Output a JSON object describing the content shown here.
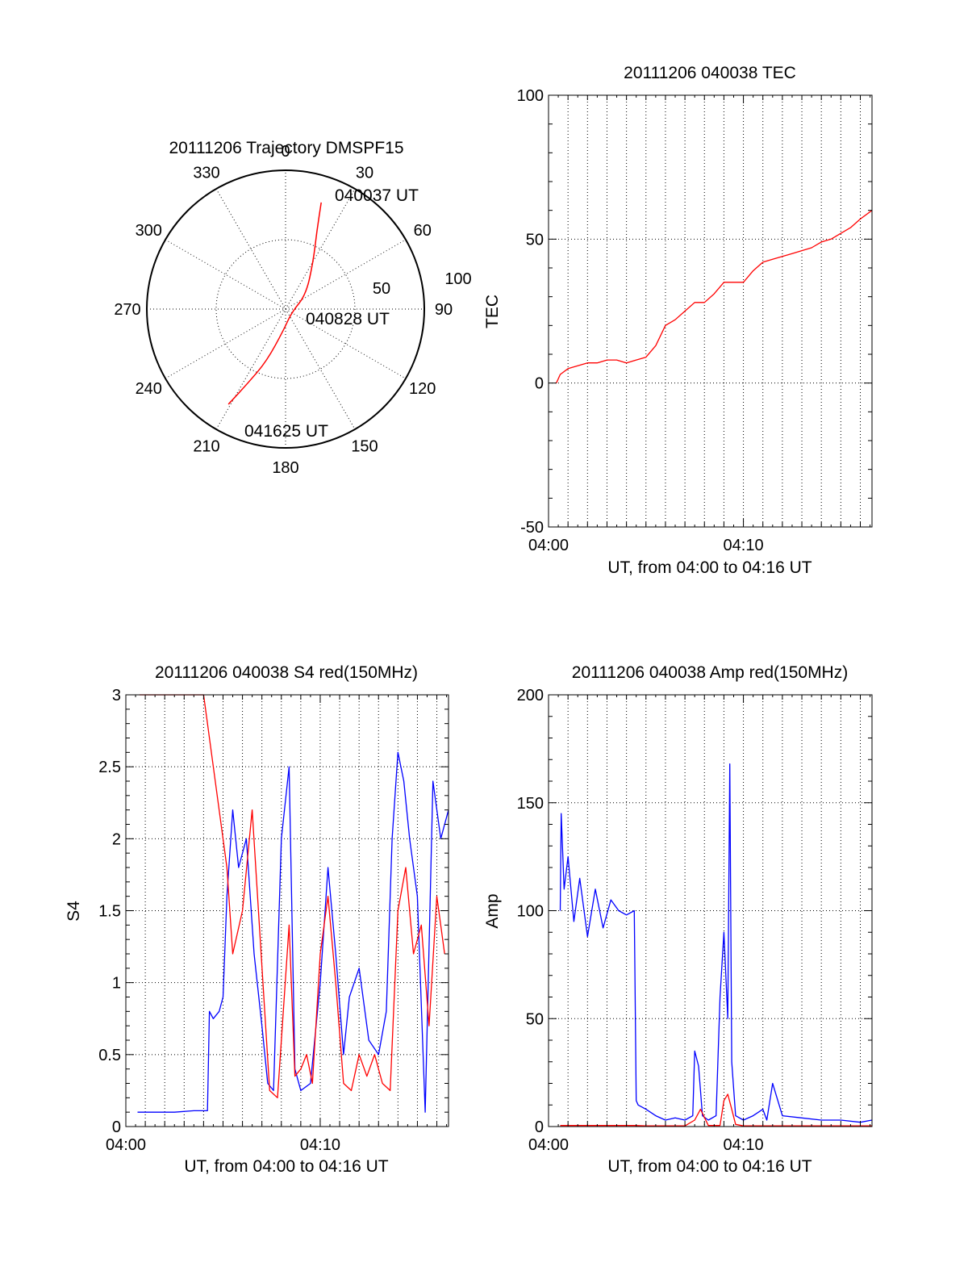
{
  "colors": {
    "red": "#ff0000",
    "blue": "#0000ff",
    "black": "#000000",
    "grid": "#000000"
  },
  "chart_data": [
    {
      "id": "trajectory",
      "type": "polar",
      "title": "20111206 Trajectory DMSPF15",
      "r_max": 100,
      "r_ring": 50,
      "ring_labels": [
        "50",
        "100"
      ],
      "angle_labels": [
        {
          "angle": 0,
          "text": "0"
        },
        {
          "angle": 30,
          "text": "30"
        },
        {
          "angle": 60,
          "text": "60"
        },
        {
          "angle": 90,
          "text": "90"
        },
        {
          "angle": 120,
          "text": "120"
        },
        {
          "angle": 150,
          "text": "150"
        },
        {
          "angle": 180,
          "text": "180"
        },
        {
          "angle": 210,
          "text": "210"
        },
        {
          "angle": 240,
          "text": "240"
        },
        {
          "angle": 270,
          "text": "270"
        },
        {
          "angle": 300,
          "text": "300"
        },
        {
          "angle": 330,
          "text": "330"
        }
      ],
      "track": [
        {
          "az": 18.5,
          "zen": 81
        },
        {
          "az": 22,
          "zen": 60
        },
        {
          "az": 30,
          "zen": 40
        },
        {
          "az": 55,
          "zen": 18
        },
        {
          "az": 120,
          "zen": 5
        },
        {
          "az": 185,
          "zen": 15
        },
        {
          "az": 200,
          "zen": 40
        },
        {
          "az": 207,
          "zen": 60
        },
        {
          "az": 211,
          "zen": 80
        }
      ],
      "annotations": [
        "040037 UT",
        "040828 UT",
        "041625 UT"
      ]
    },
    {
      "id": "tec",
      "type": "line",
      "title": "20111206 040038 TEC",
      "ylabel": "TEC",
      "xlabel": "UT, from 04:00 to 04:16 UT",
      "xlim": [
        0,
        16.6
      ],
      "ylim": [
        -50,
        100
      ],
      "xticks": [
        {
          "v": 0,
          "t": "04:00"
        },
        {
          "v": 10,
          "t": "04:10"
        }
      ],
      "yticks": [
        {
          "v": -50,
          "t": "-50"
        },
        {
          "v": 0,
          "t": "0"
        },
        {
          "v": 50,
          "t": "50"
        },
        {
          "v": 100,
          "t": "100"
        }
      ],
      "grid": true,
      "series": [
        {
          "color": "red",
          "x": [
            0.4,
            0.6,
            1.0,
            1.5,
            2.0,
            2.5,
            3.0,
            3.5,
            4.0,
            4.5,
            5.0,
            5.5,
            6.0,
            6.5,
            7.0,
            7.5,
            8.0,
            8.5,
            9.0,
            9.5,
            10.0,
            10.5,
            11.0,
            11.5,
            12.0,
            12.5,
            13.0,
            13.5,
            14.0,
            14.5,
            15.0,
            15.5,
            16.0,
            16.6
          ],
          "y": [
            0,
            3,
            5,
            6,
            7,
            7,
            8,
            8,
            7,
            8,
            9,
            13,
            20,
            22,
            25,
            28,
            28,
            31,
            35,
            35,
            35,
            39,
            42,
            43,
            44,
            45,
            46,
            47,
            49,
            50,
            52,
            54,
            57,
            60
          ]
        }
      ]
    },
    {
      "id": "s4",
      "type": "line",
      "title": "20111206 040038 S4 red(150MHz)",
      "ylabel": "S4",
      "xlabel": "UT, from 04:00 to 04:16 UT",
      "xlim": [
        0,
        16.6
      ],
      "ylim": [
        0,
        3
      ],
      "xticks": [
        {
          "v": 0,
          "t": "04:00"
        },
        {
          "v": 10,
          "t": "04:10"
        }
      ],
      "yticks": [
        {
          "v": 0,
          "t": "0"
        },
        {
          "v": 0.5,
          "t": "0.5"
        },
        {
          "v": 1,
          "t": "1"
        },
        {
          "v": 1.5,
          "t": "1.5"
        },
        {
          "v": 2,
          "t": "2"
        },
        {
          "v": 2.5,
          "t": "2.5"
        },
        {
          "v": 3,
          "t": "3"
        }
      ],
      "grid": true,
      "series": [
        {
          "color": "blue",
          "x": [
            0.6,
            1.5,
            2.5,
            3.5,
            4.2,
            4.3,
            4.5,
            4.8,
            5.0,
            5.2,
            5.5,
            5.8,
            6.2,
            6.6,
            7.0,
            7.3,
            7.6,
            8.0,
            8.4,
            8.7,
            9.0,
            9.5,
            10.0,
            10.4,
            10.8,
            11.2,
            11.5,
            12.0,
            12.5,
            13.0,
            13.4,
            13.7,
            14.0,
            14.3,
            14.6,
            15.0,
            15.4,
            15.8,
            16.2,
            16.6
          ],
          "y": [
            0.1,
            0.1,
            0.1,
            0.11,
            0.11,
            0.8,
            0.75,
            0.8,
            0.9,
            1.6,
            2.2,
            1.8,
            2.0,
            1.2,
            0.7,
            0.3,
            0.25,
            2.0,
            2.5,
            0.4,
            0.25,
            0.3,
            1.0,
            1.8,
            1.2,
            0.5,
            0.9,
            1.1,
            0.6,
            0.5,
            0.8,
            2.0,
            2.6,
            2.4,
            2.0,
            1.6,
            0.1,
            2.4,
            2.0,
            2.2
          ]
        },
        {
          "color": "red",
          "x": [
            0.7,
            1.3,
            3.0,
            4.0,
            5.2,
            5.5,
            6.0,
            6.5,
            7.4,
            7.8,
            8.4,
            8.7,
            9.0,
            9.3,
            9.6,
            10.0,
            10.4,
            10.8,
            11.2,
            11.6,
            12.0,
            12.4,
            12.8,
            13.2,
            13.6,
            14.0,
            14.4,
            14.8,
            15.2,
            15.6,
            16.0,
            16.4
          ],
          "y": [
            3.0,
            3.0,
            3.0,
            3.0,
            1.8,
            1.2,
            1.5,
            2.2,
            0.25,
            0.2,
            1.4,
            0.35,
            0.4,
            0.5,
            0.3,
            1.2,
            1.6,
            1.0,
            0.3,
            0.25,
            0.5,
            0.35,
            0.5,
            0.3,
            0.25,
            1.5,
            1.8,
            1.2,
            1.4,
            0.7,
            1.6,
            1.2
          ]
        }
      ]
    },
    {
      "id": "amp",
      "type": "line",
      "title": "20111206 040038 Amp red(150MHz)",
      "ylabel": "Amp",
      "xlabel": "UT, from 04:00 to 04:16 UT",
      "xlim": [
        0,
        16.6
      ],
      "ylim": [
        0,
        200
      ],
      "xticks": [
        {
          "v": 0,
          "t": "04:00"
        },
        {
          "v": 10,
          "t": "04:10"
        }
      ],
      "yticks": [
        {
          "v": 0,
          "t": "0"
        },
        {
          "v": 50,
          "t": "50"
        },
        {
          "v": 100,
          "t": "100"
        },
        {
          "v": 150,
          "t": "150"
        },
        {
          "v": 200,
          "t": "200"
        }
      ],
      "grid": true,
      "series": [
        {
          "color": "blue",
          "x": [
            0.6,
            0.65,
            0.8,
            1.0,
            1.3,
            1.6,
            2.0,
            2.4,
            2.8,
            3.2,
            3.6,
            4.0,
            4.4,
            4.5,
            4.6,
            5.0,
            5.5,
            6.0,
            6.5,
            7.0,
            7.4,
            7.5,
            7.7,
            7.9,
            8.2,
            8.6,
            8.8,
            9.0,
            9.2,
            9.3,
            9.4,
            9.6,
            10.0,
            10.5,
            11.0,
            11.2,
            11.5,
            12.0,
            13.0,
            14.0,
            15.0,
            16.0,
            16.6
          ],
          "y": [
            100,
            145,
            110,
            125,
            95,
            115,
            88,
            110,
            92,
            105,
            100,
            98,
            100,
            12,
            10,
            8,
            5,
            3,
            4,
            3,
            5,
            35,
            28,
            5,
            3,
            5,
            60,
            90,
            50,
            168,
            30,
            5,
            3,
            5,
            8,
            3,
            20,
            5,
            4,
            3,
            3,
            2,
            3
          ]
        },
        {
          "color": "red",
          "x": [
            0.6,
            2.0,
            3.0,
            4.4,
            5.0,
            7.0,
            7.5,
            7.8,
            8.2,
            8.8,
            9.0,
            9.2,
            9.4,
            9.6,
            10.0,
            16.6
          ],
          "y": [
            0.5,
            0.5,
            0.5,
            0.5,
            0.3,
            0.3,
            3,
            8,
            0.5,
            0.5,
            12,
            15,
            8,
            1,
            0.3,
            0.3
          ]
        }
      ]
    }
  ]
}
